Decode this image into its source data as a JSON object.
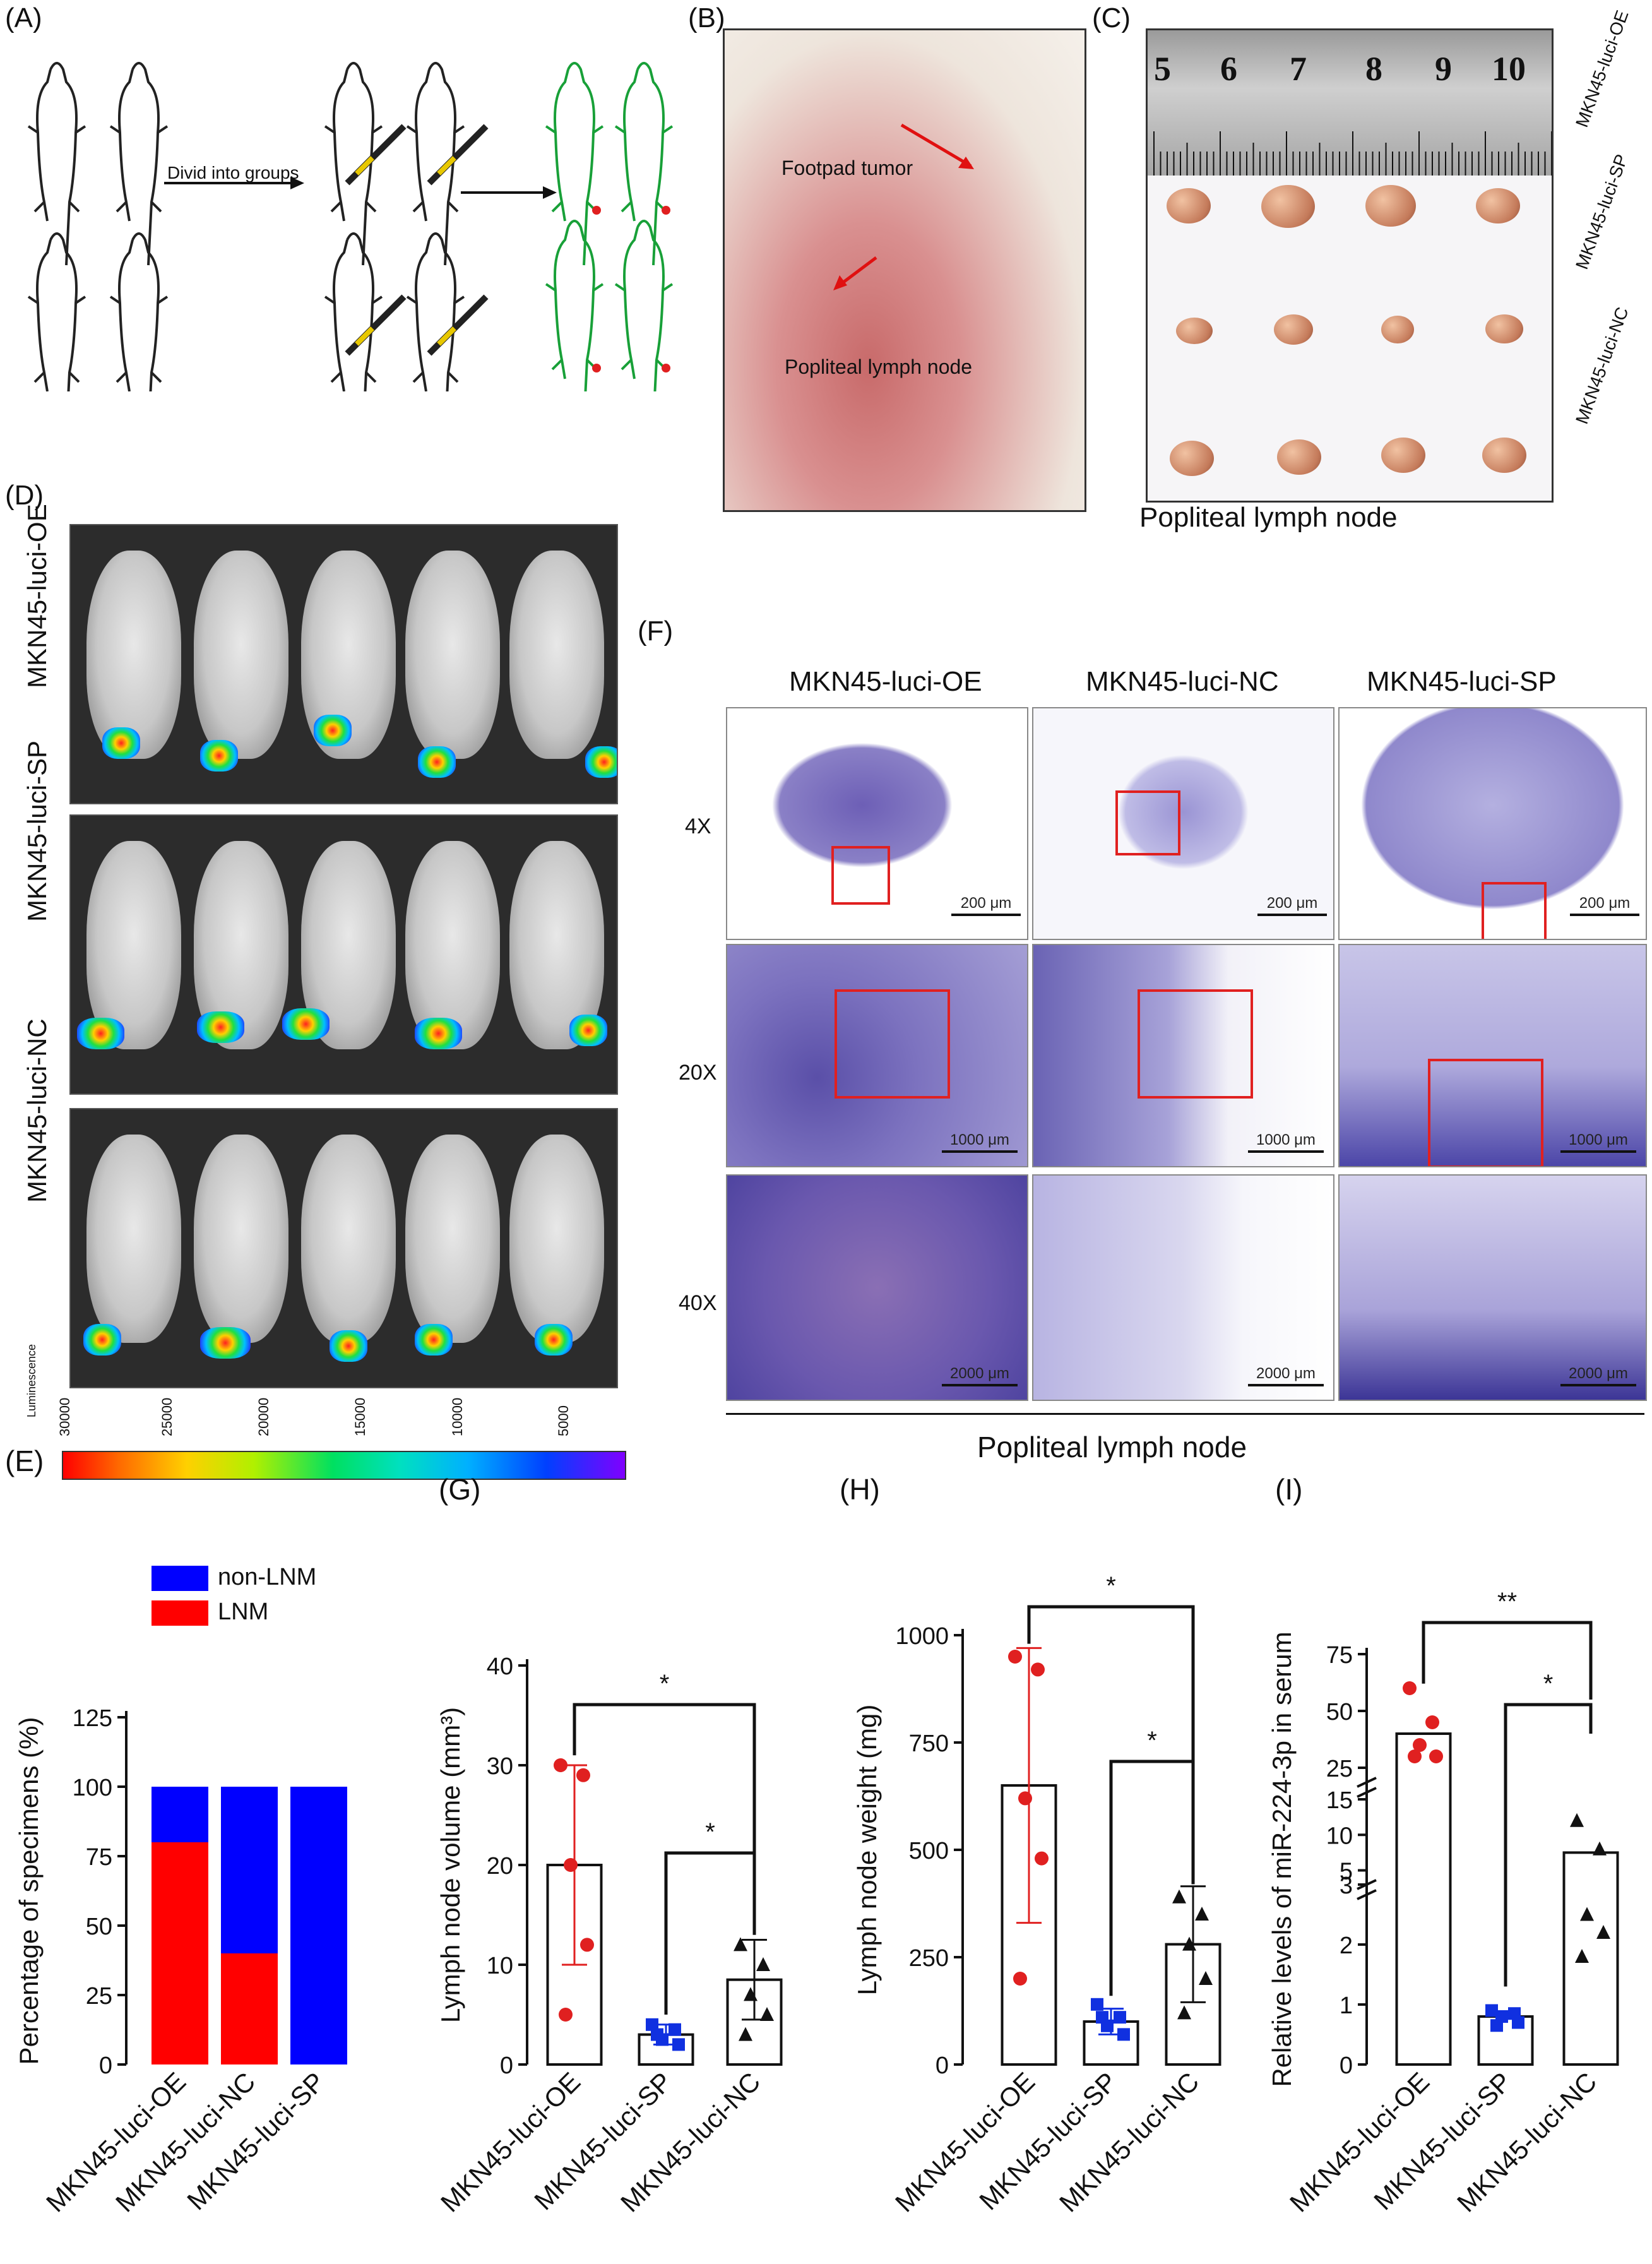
{
  "panels": {
    "a": {
      "label": "(A)",
      "arrow_text": "Divid into groups"
    },
    "b": {
      "label": "(B)",
      "tumor": "Footpad tumor",
      "node": "Popliteal lymph node"
    },
    "c": {
      "label": "(C)",
      "ruler_numbers": [
        "5",
        "6",
        "7",
        "8",
        "9",
        "10"
      ],
      "groups": [
        "MKN45-luci-OE",
        "MKN45-luci-SP",
        "MKN45-luci-NC"
      ],
      "caption": "Popliteal lymph node"
    },
    "d": {
      "label": "(D)",
      "groups": [
        "MKN45-luci-OE",
        "MKN45-luci-SP",
        "MKN45-luci-NC"
      ],
      "colorbar_title": "Luminescence",
      "colorbar_ticks": [
        "30000",
        "25000",
        "20000",
        "15000",
        "10000",
        "5000"
      ]
    },
    "f": {
      "label": "(F)",
      "columns": [
        "MKN45-luci-OE",
        "MKN45-luci-NC",
        "MKN45-luci-SP"
      ],
      "rows": [
        "4X",
        "20X",
        "40X"
      ],
      "scales": [
        "200 μm",
        "1000 μm",
        "2000 μm"
      ],
      "caption": "Popliteal lymph node"
    }
  },
  "chart_data": [
    {
      "id": "E",
      "label": "(E)",
      "type": "bar",
      "stacked": true,
      "categories": [
        "MKN45-luci-OE",
        "MKN45-luci-NC",
        "MKN45-luci-SP"
      ],
      "series": [
        {
          "name": "LNM",
          "color": "#ff0000",
          "values": [
            80,
            40,
            0
          ]
        },
        {
          "name": "non-LNM",
          "color": "#0000ff",
          "values": [
            20,
            60,
            100
          ]
        }
      ],
      "ylabel": "Percentage of specimens (%)",
      "ylim": [
        0,
        125
      ],
      "yticks": [
        "0",
        "25",
        "50",
        "75",
        "100",
        "125"
      ],
      "legend": "top-left"
    },
    {
      "id": "G",
      "label": "(G)",
      "type": "bar",
      "categories": [
        "MKN45-luci-OE",
        "MKN45-luci-SP",
        "MKN45-luci-NC"
      ],
      "means": [
        20,
        3,
        8.5
      ],
      "sd": [
        10,
        1,
        4
      ],
      "points": [
        [
          30,
          29,
          20,
          12,
          5
        ],
        [
          4,
          3.5,
          2.5,
          2,
          3
        ],
        [
          12,
          10,
          7,
          5,
          3
        ]
      ],
      "ylabel": "Lymph node volume (mm³)",
      "ylim": [
        0,
        40
      ],
      "yticks": [
        "0",
        "10",
        "20",
        "30",
        "40"
      ],
      "significance": [
        {
          "from": 0,
          "to": 2,
          "text": "*"
        },
        {
          "from": 1,
          "to": 2,
          "text": "*"
        }
      ]
    },
    {
      "id": "H",
      "label": "(H)",
      "type": "bar",
      "categories": [
        "MKN45-luci-OE",
        "MKN45-luci-SP",
        "MKN45-luci-NC"
      ],
      "means": [
        650,
        100,
        280
      ],
      "sd": [
        320,
        30,
        135
      ],
      "points": [
        [
          950,
          920,
          620,
          480,
          200
        ],
        [
          140,
          110,
          90,
          70,
          110
        ],
        [
          390,
          350,
          280,
          200,
          120
        ]
      ],
      "ylabel": "Lymph node weight (mg)",
      "ylim": [
        0,
        1000
      ],
      "yticks": [
        "0",
        "250",
        "500",
        "750",
        "1000"
      ],
      "significance": [
        {
          "from": 0,
          "to": 2,
          "text": "*"
        },
        {
          "from": 1,
          "to": 2,
          "text": "*"
        }
      ]
    },
    {
      "id": "I",
      "label": "(I)",
      "type": "bar",
      "broken_axis": true,
      "categories": [
        "MKN45-luci-OE",
        "MKN45-luci-SP",
        "MKN45-luci-NC"
      ],
      "means": [
        40,
        0.8,
        7.5
      ],
      "points": [
        [
          60,
          45,
          35,
          30,
          30
        ],
        [
          0.9,
          0.85,
          0.8,
          0.7,
          0.65
        ],
        [
          12,
          8,
          2.5,
          2.2,
          1.8
        ]
      ],
      "ylabel": "Relative levels of miR-224-3p in serum",
      "yticks": [
        "0",
        "1",
        "2",
        "3",
        "5",
        "10",
        "15",
        "25",
        "50",
        "75"
      ],
      "significance": [
        {
          "from": 0,
          "to": 2,
          "text": "**"
        },
        {
          "from": 1,
          "to": 2,
          "text": "*"
        }
      ]
    }
  ]
}
